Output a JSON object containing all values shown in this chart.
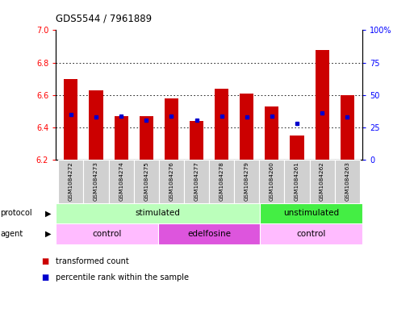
{
  "title": "GDS5544 / 7961889",
  "samples": [
    "GSM1084272",
    "GSM1084273",
    "GSM1084274",
    "GSM1084275",
    "GSM1084276",
    "GSM1084277",
    "GSM1084278",
    "GSM1084279",
    "GSM1084260",
    "GSM1084261",
    "GSM1084262",
    "GSM1084263"
  ],
  "transformed_count": [
    6.7,
    6.63,
    6.47,
    6.47,
    6.58,
    6.44,
    6.64,
    6.61,
    6.53,
    6.35,
    6.88,
    6.6
  ],
  "percentile_rank": [
    35,
    33,
    34,
    31,
    34,
    31,
    34,
    33,
    34,
    28,
    36,
    33
  ],
  "ylim_left": [
    6.2,
    7.0
  ],
  "ylim_right": [
    0,
    100
  ],
  "yticks_left": [
    6.2,
    6.4,
    6.6,
    6.8,
    7.0
  ],
  "yticks_right": [
    0,
    25,
    50,
    75,
    100
  ],
  "ybase": 6.2,
  "bar_color": "#cc0000",
  "dot_color": "#0000cc",
  "bg_color": "#ffffff",
  "protocol_groups": [
    {
      "label": "stimulated",
      "start": 0,
      "end": 8,
      "color": "#bbffbb"
    },
    {
      "label": "unstimulated",
      "start": 8,
      "end": 12,
      "color": "#44ee44"
    }
  ],
  "agent_groups": [
    {
      "label": "control",
      "start": 0,
      "end": 4,
      "color": "#ffbbff"
    },
    {
      "label": "edelfosine",
      "start": 4,
      "end": 8,
      "color": "#dd55dd"
    },
    {
      "label": "control",
      "start": 8,
      "end": 12,
      "color": "#ffbbff"
    }
  ]
}
